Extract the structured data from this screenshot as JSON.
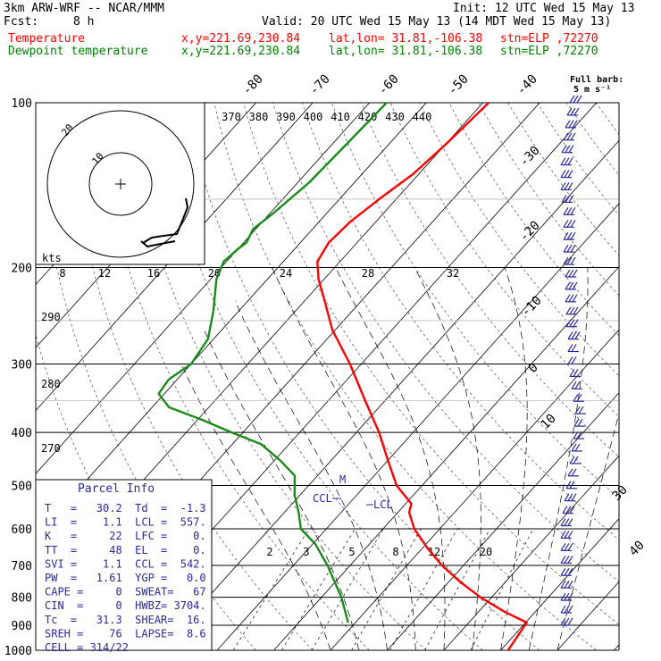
{
  "header": {
    "model": "3km ARW-WRF -- NCAR/MMM",
    "init": "Init: 12 UTC Wed 15 May 13",
    "fcst_label": "Fcst:",
    "fcst_value": "8 h",
    "valid": "Valid: 20 UTC Wed 15 May 13 (14 MDT Wed 15 May 13)",
    "rows": [
      {
        "label": "Temperature",
        "xy": "x,y=221.69,230.84",
        "latlon": "lat,lon= 31.81,-106.38",
        "stn": "stn=ELP ,72270",
        "color": "#ff0000"
      },
      {
        "label": "Dewpoint temperature",
        "xy": "x,y=221.69,230.84",
        "latlon": "lat,lon= 31.81,-106.38",
        "stn": "stn=ELP ,72270",
        "color": "#008000"
      }
    ]
  },
  "colors": {
    "temperature": "#ff0000",
    "dewpoint": "#1a8a1a",
    "barbs": "#2a2a9a",
    "grid": "#000000"
  },
  "barb_legend": {
    "title": "Full barb:",
    "value": "5 m s⁻¹"
  },
  "hodograph": {
    "units_label": "kts",
    "ring_labels": [
      "10",
      "20"
    ],
    "speed_ticks": [
      "8",
      "12",
      "16",
      "20",
      "24",
      "28",
      "32"
    ]
  },
  "theta_labels": [
    "370",
    "380",
    "390",
    "400",
    "410",
    "420",
    "430",
    "440"
  ],
  "isotherm_labels": [
    "-80",
    "-70",
    "-60",
    "-50",
    "-40",
    "-30",
    "-20",
    "-10",
    "0",
    "10",
    "30",
    "40"
  ],
  "mixing_ratio_labels": [
    "2",
    "3",
    "5",
    "8",
    "12",
    "20"
  ],
  "dry_adiabat_labels": [
    "290",
    "280",
    "270"
  ],
  "markers": {
    "ccl": "CCL",
    "lcl": "LCL",
    "mark": "M"
  },
  "parcel_info": {
    "title": "Parcel Info",
    "rows": [
      "T   =   30.2  Td  =  -1.3",
      "LI  =    1.1  LCL =  557.",
      "K   =     22  LFC =    0.",
      "TT  =     48  EL  =    0.",
      "SVI =    1.1  CCL =  542.",
      "PW  =   1.61  YGP =   0.0",
      "CAPE =     0  SWEAT=   67",
      "CIN  =     0  HWBZ= 3704.",
      "Tc  =   31.3  SHEAR=  16.",
      "SREH =    76  LAPSE=  8.6",
      "CELL = 314/22"
    ]
  },
  "chart_data": {
    "type": "line",
    "title": "",
    "ylabel": "",
    "y_scale": "log",
    "pressure_levels": [
      "100",
      "200",
      "300",
      "400",
      "500",
      "600",
      "700",
      "800",
      "900",
      "1000"
    ],
    "x_ticks": [],
    "series": [
      {
        "name": "Temperature",
        "pressure": [
          1000,
          890,
          850,
          800,
          750,
          700,
          650,
          600,
          560,
          540,
          500,
          450,
          400,
          350,
          300,
          260,
          230,
          210,
          195,
          180,
          165,
          150,
          135,
          120,
          110,
          100
        ],
        "temp": [
          31.3,
          30.2,
          24.5,
          18.0,
          12.0,
          6.2,
          0.8,
          -4.5,
          -8.0,
          -9.0,
          -14.5,
          -20.0,
          -26.0,
          -33.5,
          -42.0,
          -50.5,
          -56.5,
          -61.0,
          -64.0,
          -65.0,
          -64.5,
          -63.0,
          -61.0,
          -60.0,
          -59.5,
          -59.0
        ]
      },
      {
        "name": "Dewpoint temperature",
        "pressure": [
          890,
          800,
          700,
          640,
          600,
          560,
          520,
          480,
          450,
          420,
          400,
          380,
          360,
          340,
          320,
          300,
          270,
          240,
          210,
          195,
          185,
          180,
          170,
          160,
          140,
          120,
          100
        ],
        "temp": [
          -1.3,
          -6.5,
          -14.0,
          -19.5,
          -24.5,
          -27.5,
          -31.0,
          -34.0,
          -39.0,
          -45.0,
          -52.0,
          -59.0,
          -67.0,
          -71.0,
          -71.5,
          -70.0,
          -71.0,
          -74.5,
          -79.0,
          -80.5,
          -80.0,
          -79.5,
          -80.5,
          -79.5,
          -78.0,
          -77.5,
          -77.0
        ]
      }
    ]
  }
}
